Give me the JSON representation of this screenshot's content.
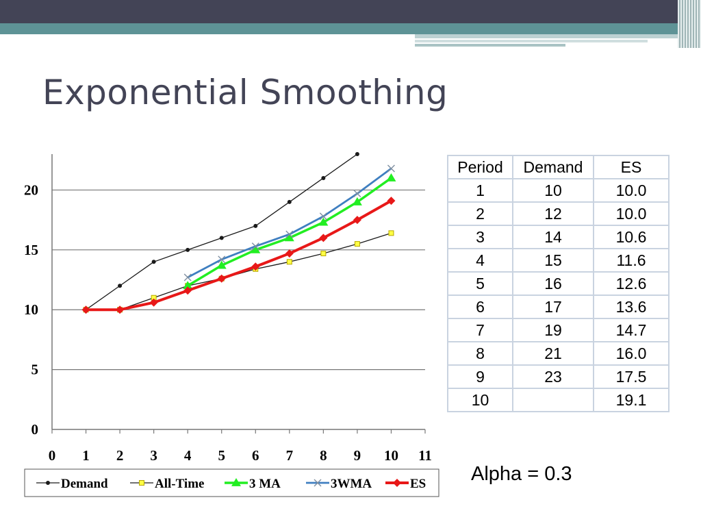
{
  "slide": {
    "title": "Exponential Smoothing",
    "alpha_label": "Alpha = 0.3"
  },
  "colors": {
    "header_dark": "#434456",
    "header_teal": "#5e9396",
    "title": "#434456",
    "demand": "#1a1a1a",
    "all_time": "#1a1a1a",
    "ma3": "#22ee22",
    "wma3": "#3f7fc0",
    "es": "#e81818"
  },
  "table": {
    "headers": [
      "Period",
      "Demand",
      "ES"
    ],
    "rows": [
      [
        "1",
        "10",
        "10.0"
      ],
      [
        "2",
        "12",
        "10.0"
      ],
      [
        "3",
        "14",
        "10.6"
      ],
      [
        "4",
        "15",
        "11.6"
      ],
      [
        "5",
        "16",
        "12.6"
      ],
      [
        "6",
        "17",
        "13.6"
      ],
      [
        "7",
        "19",
        "14.7"
      ],
      [
        "8",
        "21",
        "16.0"
      ],
      [
        "9",
        "23",
        "17.5"
      ],
      [
        "10",
        "",
        "19.1"
      ]
    ]
  },
  "chart_data": {
    "type": "line",
    "xlim": [
      0,
      11
    ],
    "ylim": [
      0,
      23
    ],
    "x_ticks": [
      0,
      1,
      2,
      3,
      4,
      5,
      6,
      7,
      8,
      9,
      10,
      11
    ],
    "y_ticks": [
      0,
      5,
      10,
      15,
      20
    ],
    "grid": "horizontal",
    "legend_position": "bottom",
    "series": [
      {
        "name": "Demand",
        "key": "demand",
        "marker": "dot",
        "x": [
          1,
          2,
          3,
          4,
          5,
          6,
          7,
          8,
          9
        ],
        "y": [
          10,
          12,
          14,
          15,
          16,
          17,
          19,
          21,
          23
        ]
      },
      {
        "name": "All-Time",
        "key": "all_time",
        "marker": "square",
        "x": [
          1,
          2,
          3,
          4,
          5,
          6,
          7,
          8,
          9,
          10
        ],
        "y": [
          10,
          10,
          11,
          12,
          12.6,
          13.4,
          14,
          14.7,
          15.5,
          16.4
        ]
      },
      {
        "name": "3 MA",
        "key": "ma3",
        "marker": "triangle",
        "x": [
          4,
          5,
          6,
          7,
          8,
          9,
          10
        ],
        "y": [
          12,
          13.7,
          15,
          16,
          17.3,
          19,
          21
        ]
      },
      {
        "name": "3WMA",
        "key": "wma3",
        "marker": "x",
        "x": [
          4,
          5,
          6,
          7,
          8,
          9,
          10
        ],
        "y": [
          12.7,
          14.2,
          15.3,
          16.3,
          17.8,
          19.7,
          21.8
        ]
      },
      {
        "name": "ES",
        "key": "es",
        "marker": "diamond",
        "x": [
          1,
          2,
          3,
          4,
          5,
          6,
          7,
          8,
          9,
          10
        ],
        "y": [
          10,
          10,
          10.6,
          11.6,
          12.6,
          13.6,
          14.7,
          16.0,
          17.5,
          19.1
        ]
      }
    ]
  }
}
